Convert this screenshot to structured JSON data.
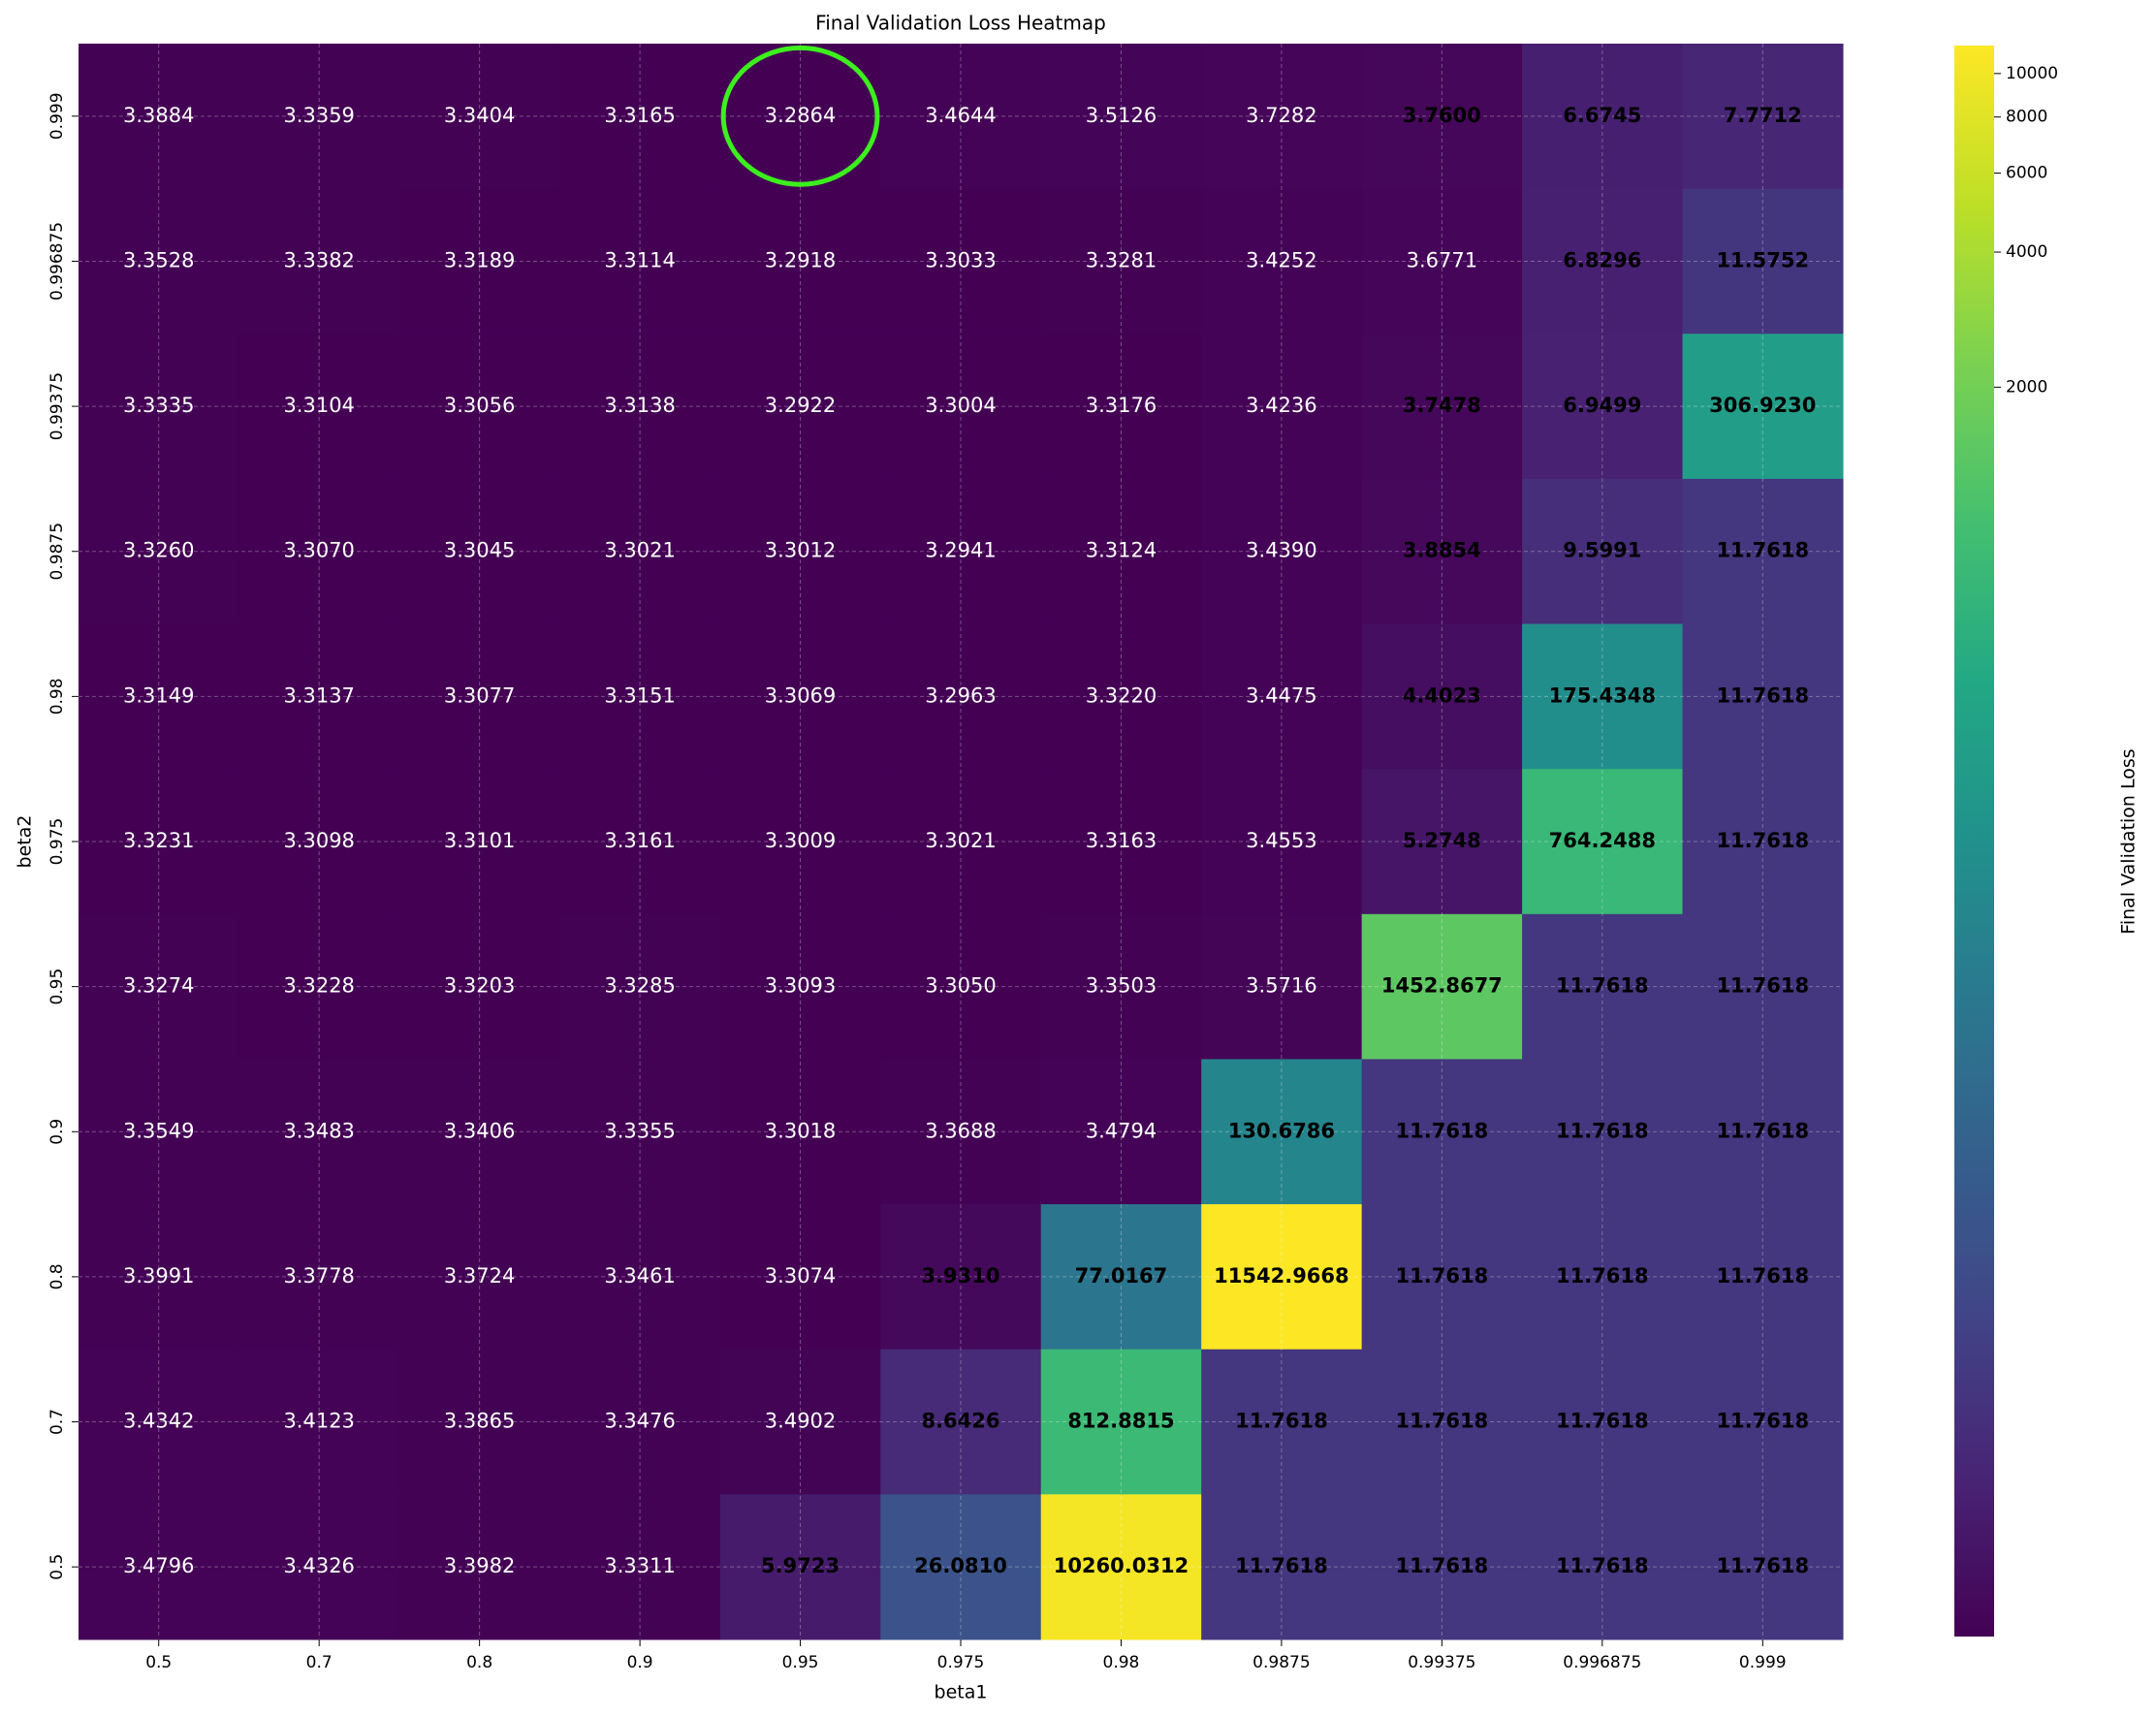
{
  "chart_data": {
    "type": "heatmap",
    "title": "Final Validation Loss Heatmap",
    "x_label": "beta1",
    "y_label": "beta2",
    "colorbar_label": "Final Validation Loss",
    "colormap": "viridis",
    "color_scale": "log",
    "grid": true,
    "categories": [
      "0.5",
      "0.7",
      "0.8",
      "0.9",
      "0.95",
      "0.975",
      "0.98",
      "0.9875",
      "0.99375",
      "0.996875",
      "0.999"
    ],
    "y_categories": [
      "0.999",
      "0.996875",
      "0.99375",
      "0.9875",
      "0.98",
      "0.975",
      "0.95",
      "0.9",
      "0.8",
      "0.7",
      "0.5"
    ],
    "values": [
      [
        3.3884,
        3.3359,
        3.3404,
        3.3165,
        3.2864,
        3.4644,
        3.5126,
        3.7282,
        3.76,
        6.6745,
        7.7712
      ],
      [
        3.3528,
        3.3382,
        3.3189,
        3.3114,
        3.2918,
        3.3033,
        3.3281,
        3.4252,
        3.6771,
        6.8296,
        11.5752
      ],
      [
        3.3335,
        3.3104,
        3.3056,
        3.3138,
        3.2922,
        3.3004,
        3.3176,
        3.4236,
        3.7478,
        6.9499,
        306.923
      ],
      [
        3.326,
        3.307,
        3.3045,
        3.3021,
        3.3012,
        3.2941,
        3.3124,
        3.439,
        3.8854,
        9.5991,
        11.7618
      ],
      [
        3.3149,
        3.3137,
        3.3077,
        3.3151,
        3.3069,
        3.2963,
        3.322,
        3.4475,
        4.4023,
        175.4348,
        11.7618
      ],
      [
        3.3231,
        3.3098,
        3.3101,
        3.3161,
        3.3009,
        3.3021,
        3.3163,
        3.4553,
        5.2748,
        764.2488,
        11.7618
      ],
      [
        3.3274,
        3.3228,
        3.3203,
        3.3285,
        3.3093,
        3.305,
        3.3503,
        3.5716,
        1452.8677,
        11.7618,
        11.7618
      ],
      [
        3.3549,
        3.3483,
        3.3406,
        3.3355,
        3.3018,
        3.3688,
        3.4794,
        130.6786,
        11.7618,
        11.7618,
        11.7618
      ],
      [
        3.3991,
        3.3778,
        3.3724,
        3.3461,
        3.3074,
        3.931,
        77.0167,
        11542.9668,
        11.7618,
        11.7618,
        11.7618
      ],
      [
        3.4342,
        3.4123,
        3.3865,
        3.3476,
        3.4902,
        8.6426,
        812.8815,
        11.7618,
        11.7618,
        11.7618,
        11.7618
      ],
      [
        3.4796,
        3.4326,
        3.3982,
        3.3311,
        5.9723,
        26.081,
        10260.0312,
        11.7618,
        11.7618,
        11.7618,
        11.7618
      ]
    ],
    "value_labels": [
      [
        "3.3884",
        "3.3359",
        "3.3404",
        "3.3165",
        "3.2864",
        "3.4644",
        "3.5126",
        "3.7282",
        "3.7600",
        "6.6745",
        "7.7712"
      ],
      [
        "3.3528",
        "3.3382",
        "3.3189",
        "3.3114",
        "3.2918",
        "3.3033",
        "3.3281",
        "3.4252",
        "3.6771",
        "6.8296",
        "11.5752"
      ],
      [
        "3.3335",
        "3.3104",
        "3.3056",
        "3.3138",
        "3.2922",
        "3.3004",
        "3.3176",
        "3.4236",
        "3.7478",
        "6.9499",
        "306.9230"
      ],
      [
        "3.3260",
        "3.3070",
        "3.3045",
        "3.3021",
        "3.3012",
        "3.2941",
        "3.3124",
        "3.4390",
        "3.8854",
        "9.5991",
        "11.7618"
      ],
      [
        "3.3149",
        "3.3137",
        "3.3077",
        "3.3151",
        "3.3069",
        "3.2963",
        "3.3220",
        "3.4475",
        "4.4023",
        "175.4348",
        "11.7618"
      ],
      [
        "3.3231",
        "3.3098",
        "3.3101",
        "3.3161",
        "3.3009",
        "3.3021",
        "3.3163",
        "3.4553",
        "5.2748",
        "764.2488",
        "11.7618"
      ],
      [
        "3.3274",
        "3.3228",
        "3.3203",
        "3.3285",
        "3.3093",
        "3.3050",
        "3.3503",
        "3.5716",
        "1452.8677",
        "11.7618",
        "11.7618"
      ],
      [
        "3.3549",
        "3.3483",
        "3.3406",
        "3.3355",
        "3.3018",
        "3.3688",
        "3.4794",
        "130.6786",
        "11.7618",
        "11.7618",
        "11.7618"
      ],
      [
        "3.3991",
        "3.3778",
        "3.3724",
        "3.3461",
        "3.3074",
        "3.9310",
        "77.0167",
        "11542.9668",
        "11.7618",
        "11.7618",
        "11.7618"
      ],
      [
        "3.4342",
        "3.4123",
        "3.3865",
        "3.3476",
        "3.4902",
        "8.6426",
        "812.8815",
        "11.7618",
        "11.7618",
        "11.7618",
        "11.7618"
      ],
      [
        "3.4796",
        "3.4326",
        "3.3982",
        "3.3311",
        "5.9723",
        "26.0810",
        "10260.0312",
        "11.7618",
        "11.7618",
        "11.7618",
        "11.7618"
      ]
    ],
    "zlim": [
      3.2864,
      11542.9668
    ],
    "zticks": [
      2000,
      4000,
      6000,
      8000,
      10000
    ],
    "highlight_color": "#3cf01e"
  }
}
